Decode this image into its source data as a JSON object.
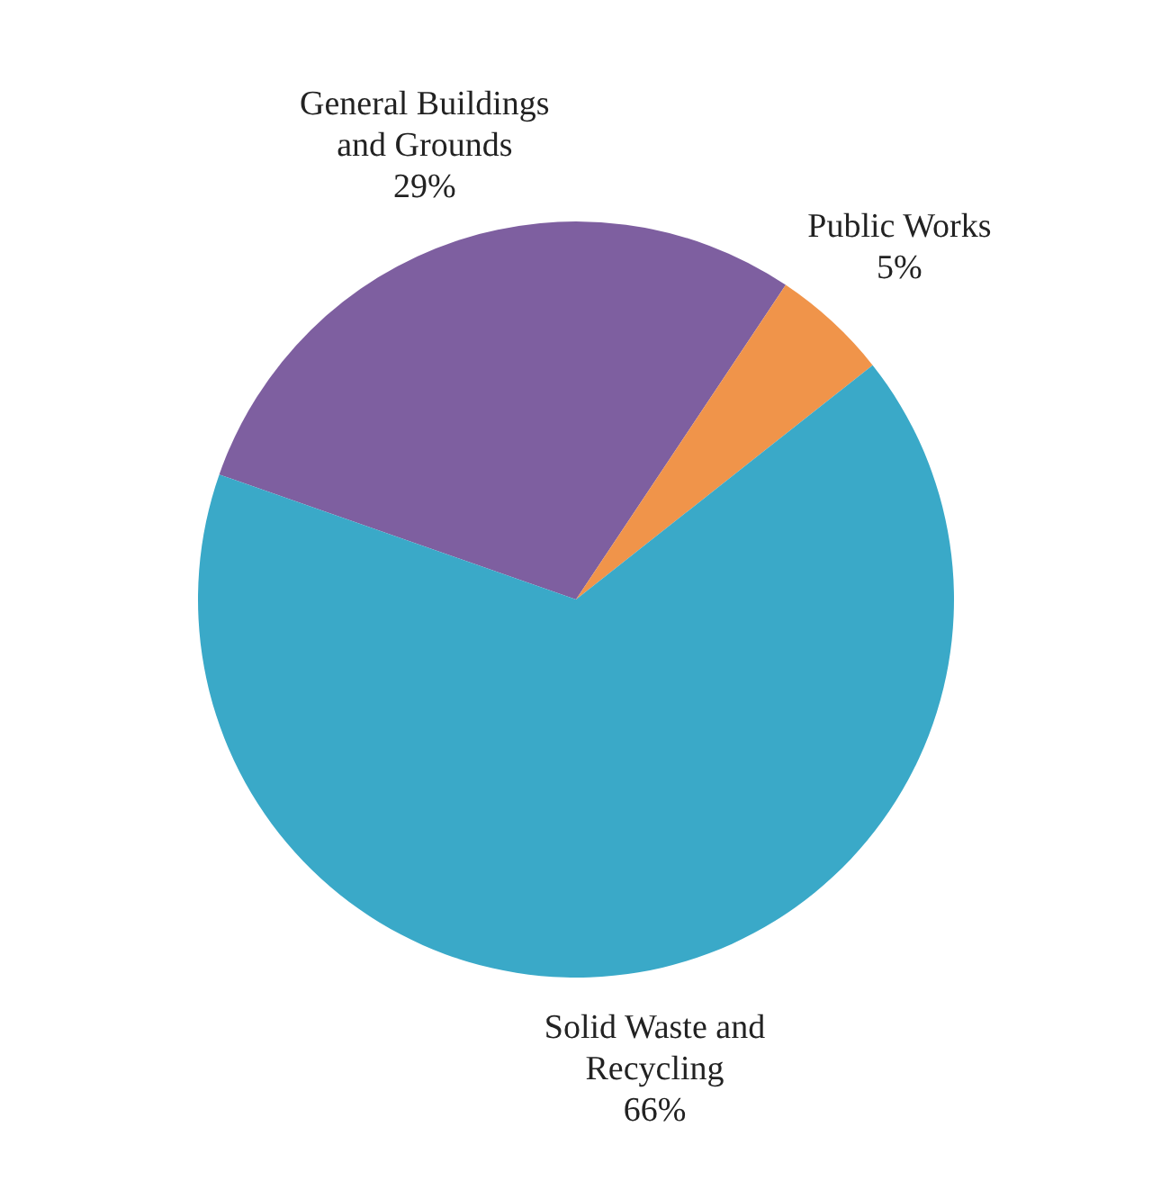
{
  "chart_data": {
    "type": "pie",
    "categories": [
      "General Buildings and Grounds",
      "Public Works",
      "Solid Waste and Recycling"
    ],
    "values": [
      29,
      5,
      66
    ],
    "colors": [
      "#7e5fa0",
      "#f0944a",
      "#3aa9c8"
    ],
    "value_labels": [
      "29%",
      "5%",
      "66%"
    ],
    "legend": false
  }
}
